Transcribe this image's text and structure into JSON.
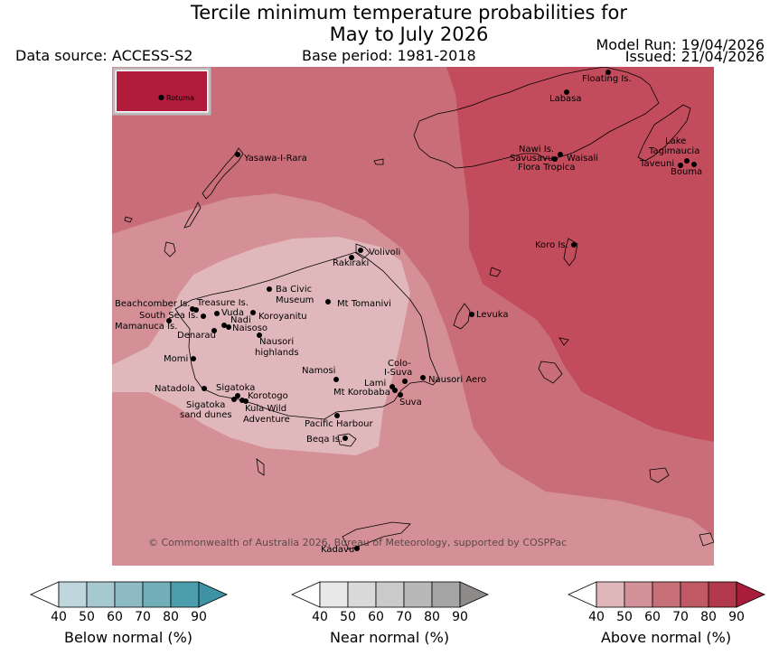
{
  "title": {
    "line1": "Tercile minimum temperature probabilities for",
    "line2": "May to July 2026"
  },
  "header": {
    "data_source": "Data source: ACCESS-S2",
    "base_period": "Base period: 1981-2018",
    "model_run": "Model Run: 19/04/2026",
    "issued": "Issued: 21/04/2026"
  },
  "copyright": "© Commonwealth of Australia 2026, Bureau of Meteorology, supported by COSPPac",
  "inset": {
    "label": "Rotuma"
  },
  "places": {
    "floating": "Floating Is.",
    "labasa": "Labasa",
    "yasawa": "Yasawa-I-Rara",
    "nawi": "Nawi Is.",
    "savusavu": "Savusavu",
    "waisali": "Waisali",
    "flora": "Flora Tropica",
    "lake": "Lake",
    "tagimaucia": "Tagimaucia",
    "taveuni": "Taveuni",
    "bouma": "Bouma",
    "koro": "Koro Is.",
    "volivoli": "Volivoli",
    "rakiraki": "Rakiraki",
    "beachcomber": "Beachcomber Is.",
    "treasure": "Treasure Is.",
    "ba_civic1": "Ba Civic",
    "ba_civic2": "Museum",
    "mt_tomanivi": "Mt Tomanivi",
    "south_sea": "South Sea Is.",
    "vuda": "Vuda",
    "koroyanitu": "Koroyanitu",
    "nadi": "Nadi",
    "mamanuca": "Mamanuca Is.",
    "naisoso": "Naisoso",
    "denarau": "Denarau",
    "nausori_high1": "Nausori",
    "nausori_high2": "highlands",
    "levuka": "Levuka",
    "momi": "Momi",
    "namosi": "Namosi",
    "colo1": "Colo-",
    "colo2": "I-Suva",
    "lami": "Lami",
    "nausori_aero": "Nausori Aero",
    "natadola": "Natadola",
    "sigatoka": "Sigatoka",
    "mt_korobaba": "Mt Korobaba",
    "korotogo": "Korotogo",
    "suva": "Suva",
    "sig_dunes1": "Sigatoka",
    "sig_dunes2": "sand dunes",
    "kula1": "Kula Wild",
    "kula2": "Adventure",
    "pacific_harbour": "Pacific Harbour",
    "beqa": "Beqa Is.",
    "kadavu": "Kadavu"
  },
  "colorbars": [
    {
      "name": "below",
      "label": "Below normal (%)",
      "ticks": [
        "40",
        "50",
        "60",
        "70",
        "80",
        "90"
      ],
      "colors": [
        "#bed6dc",
        "#a6c8cf",
        "#8ebbc3",
        "#72aeb8",
        "#4c9dab",
        "#3d93a3"
      ]
    },
    {
      "name": "near",
      "label": "Near normal (%)",
      "ticks": [
        "40",
        "50",
        "60",
        "70",
        "80",
        "90"
      ],
      "colors": [
        "#e8e8e8",
        "#dadada",
        "#cacaca",
        "#b8b8b8",
        "#a5a5a5",
        "#8f8a8a"
      ]
    },
    {
      "name": "above",
      "label": "Above normal (%)",
      "ticks": [
        "40",
        "50",
        "60",
        "70",
        "80",
        "90"
      ],
      "colors": [
        "#dfb7ba",
        "#d3919a",
        "#c87078",
        "#bf5a65",
        "#b2384c",
        "#a91c3c"
      ]
    }
  ],
  "map_colors": {
    "band_40_50": "#e0b8bb",
    "band_50_60": "#d48f97",
    "band_60_70": "#c96e79",
    "band_70_80": "#c24c5c",
    "inset_fill": "#b21c3c"
  }
}
